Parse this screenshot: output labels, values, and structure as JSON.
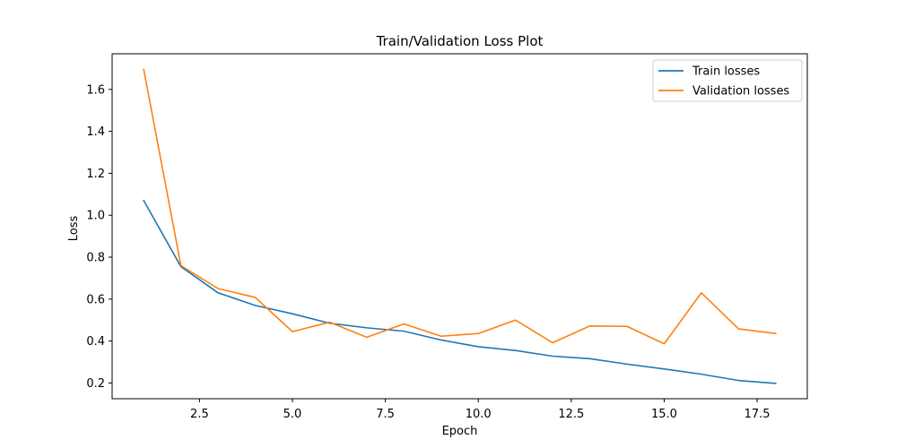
{
  "chart_data": {
    "type": "line",
    "title": "Train/Validation Loss Plot",
    "xlabel": "Epoch",
    "ylabel": "Loss",
    "xlim": [
      0.15,
      18.85
    ],
    "ylim": [
      0.125,
      1.77
    ],
    "x_ticks": [
      2.5,
      5.0,
      7.5,
      10.0,
      12.5,
      15.0,
      17.5
    ],
    "x_tick_labels": [
      "2.5",
      "5.0",
      "7.5",
      "10.0",
      "12.5",
      "15.0",
      "17.5"
    ],
    "y_ticks": [
      0.2,
      0.4,
      0.6,
      0.8,
      1.0,
      1.2,
      1.4,
      1.6
    ],
    "y_tick_labels": [
      "0.2",
      "0.4",
      "0.6",
      "0.8",
      "1.0",
      "1.2",
      "1.4",
      "1.6"
    ],
    "grid": false,
    "legend_position": "top-right",
    "x": [
      1,
      2,
      3,
      4,
      5,
      6,
      7,
      8,
      9,
      10,
      11,
      12,
      13,
      14,
      15,
      16,
      17,
      18
    ],
    "series": [
      {
        "name": "Train losses",
        "color": "#1f77b4",
        "values": [
          1.07,
          0.755,
          0.63,
          0.57,
          0.53,
          0.485,
          0.463,
          0.447,
          0.405,
          0.373,
          0.355,
          0.328,
          0.316,
          0.29,
          0.267,
          0.242,
          0.212,
          0.198
        ]
      },
      {
        "name": "Validation losses",
        "color": "#ff7f0e",
        "values": [
          1.695,
          0.76,
          0.65,
          0.608,
          0.445,
          0.49,
          0.418,
          0.482,
          0.423,
          0.436,
          0.5,
          0.392,
          0.472,
          0.47,
          0.387,
          0.63,
          0.458,
          0.436
        ]
      }
    ]
  }
}
